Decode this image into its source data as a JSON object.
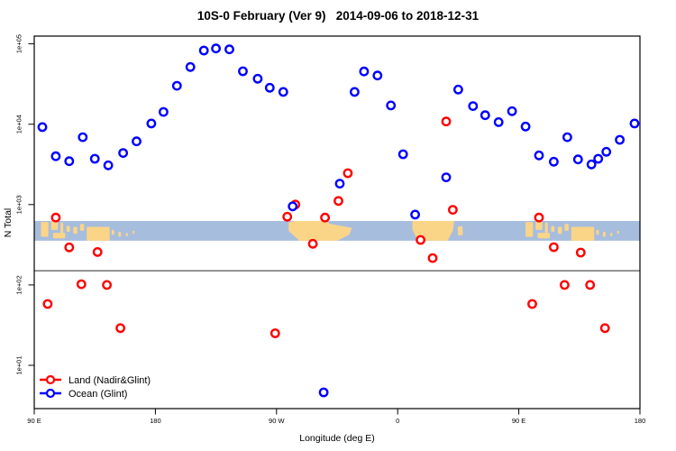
{
  "title": "10S-0 February (Ver 9)   2014-09-06 to 2018-12-31",
  "colors": {
    "land_series": "#FF0000",
    "ocean_series": "#0000FF",
    "map_ocean_band": "#A7BDDE",
    "map_land": "#FBD587",
    "threshold_line": "#666666",
    "axis": "#000000",
    "marker_fill": "#FFFFFF"
  },
  "legend": {
    "items": [
      {
        "label": "Land (Nadir&Glint)",
        "color": "#FF0000"
      },
      {
        "label": "Ocean (Glint)",
        "color": "#0000FF"
      }
    ],
    "position": "bottom-left"
  },
  "chart_data": {
    "type": "scatter",
    "title": "10S-0 February (Ver 9)   2014-09-06 to 2018-12-31",
    "xlabel": "Longitude (deg E)",
    "ylabel": "N Total",
    "grid": false,
    "x_axis": {
      "note": "longitude increases eastward and wraps: 90E to 180 to 90W to 0 to 90E to 180",
      "ticks_deg": [
        90,
        180,
        270,
        360,
        450,
        540
      ],
      "tick_labels": [
        "90 E",
        "180",
        "90 W",
        "0",
        "90 E",
        "180"
      ],
      "range_deg": [
        90,
        540
      ]
    },
    "y_axis": {
      "scale": "log10",
      "ticks": [
        10,
        100,
        1000,
        10000,
        100000
      ],
      "tick_labels": [
        "1e+01",
        "1e+02",
        "1e+03",
        "1e+04",
        "1e+05"
      ],
      "range": [
        3,
        125000
      ]
    },
    "threshold_line": {
      "value": 150
    },
    "map_band": {
      "description": "world map strip of the 10S-0 latitude band drawn across the plot",
      "top_value": 625,
      "bottom_value": 355,
      "island_patches": [
        [
          95,
          100.5,
          0.05,
          0.8
        ],
        [
          102.5,
          107.5,
          0.0,
          0.45
        ],
        [
          104,
          113,
          0.6,
          0.88
        ],
        [
          109.5,
          111.5,
          0.08,
          0.6
        ],
        [
          114,
          116.5,
          0.25,
          0.55
        ],
        [
          119,
          122,
          0.3,
          0.65
        ],
        [
          124,
          127,
          0.15,
          0.5
        ],
        [
          129,
          146,
          0.3,
          1.0
        ],
        [
          147.5,
          149.5,
          0.45,
          0.7
        ],
        [
          152.5,
          154.5,
          0.55,
          0.8
        ],
        [
          158,
          159.5,
          0.6,
          0.78
        ],
        [
          163,
          164.5,
          0.5,
          0.65
        ]
      ],
      "island_repeat_offset_deg": 360,
      "polygons": [
        {
          "name": "south-america",
          "points": [
            [
              279,
              0.08
            ],
            [
              284,
              0.0
            ],
            [
              306,
              0.0
            ],
            [
              310,
              0.15
            ],
            [
              326,
              0.35
            ],
            [
              324,
              0.7
            ],
            [
              315,
              1.0
            ],
            [
              287,
              1.0
            ],
            [
              279,
              0.5
            ]
          ]
        },
        {
          "name": "africa",
          "points": [
            [
              371,
              0.0
            ],
            [
              402,
              0.0
            ],
            [
              401,
              0.5
            ],
            [
              397,
              1.0
            ],
            [
              375,
              1.0
            ],
            [
              371,
              0.45
            ]
          ]
        },
        {
          "name": "madagascar",
          "points": [
            [
              404.5,
              0.3
            ],
            [
              408,
              0.25
            ],
            [
              408.5,
              0.7
            ],
            [
              405,
              0.75
            ]
          ]
        }
      ]
    },
    "series": [
      {
        "name": "Land (Nadir&Glint)",
        "color": "#FF0000",
        "points": [
          [
            100,
            58
          ],
          [
            106,
            690
          ],
          [
            116,
            293
          ],
          [
            125,
            102
          ],
          [
            137,
            257
          ],
          [
            144,
            100
          ],
          [
            154,
            29
          ],
          [
            269,
            25
          ],
          [
            278,
            706
          ],
          [
            284,
            1000
          ],
          [
            297,
            325
          ],
          [
            306,
            690
          ],
          [
            316,
            1110
          ],
          [
            323,
            2460
          ],
          [
            377,
            363
          ],
          [
            386,
            216
          ],
          [
            396,
            10800
          ],
          [
            401,
            860
          ],
          [
            460,
            58
          ],
          [
            465,
            690
          ],
          [
            476,
            295
          ],
          [
            484,
            100
          ],
          [
            496,
            253
          ],
          [
            503,
            100
          ],
          [
            514,
            29
          ]
        ]
      },
      {
        "name": "Ocean (Glint)",
        "color": "#0000FF",
        "points": [
          [
            96,
            9200
          ],
          [
            106,
            4000
          ],
          [
            116,
            3470
          ],
          [
            126,
            6900
          ],
          [
            135,
            3720
          ],
          [
            145,
            3080
          ],
          [
            156,
            4380
          ],
          [
            166,
            6120
          ],
          [
            177,
            10200
          ],
          [
            186,
            14200
          ],
          [
            196,
            30100
          ],
          [
            206,
            51500
          ],
          [
            216,
            82600
          ],
          [
            225,
            87700
          ],
          [
            235,
            85500
          ],
          [
            245,
            45600
          ],
          [
            256,
            36800
          ],
          [
            265,
            28400
          ],
          [
            275,
            25200
          ],
          [
            282,
            950
          ],
          [
            305,
            4.6
          ],
          [
            317,
            1820
          ],
          [
            328,
            25200
          ],
          [
            335,
            45300
          ],
          [
            345,
            40400
          ],
          [
            355,
            17100
          ],
          [
            364,
            4230
          ],
          [
            373,
            750
          ],
          [
            396,
            2180
          ],
          [
            405,
            27000
          ],
          [
            416,
            16800
          ],
          [
            425,
            12950
          ],
          [
            435,
            10600
          ],
          [
            445,
            14500
          ],
          [
            455,
            9360
          ],
          [
            465,
            4090
          ],
          [
            476,
            3410
          ],
          [
            486,
            6900
          ],
          [
            494,
            3650
          ],
          [
            504,
            3160
          ],
          [
            509,
            3720
          ],
          [
            515,
            4540
          ],
          [
            525,
            6400
          ],
          [
            536,
            10200
          ]
        ]
      }
    ]
  }
}
